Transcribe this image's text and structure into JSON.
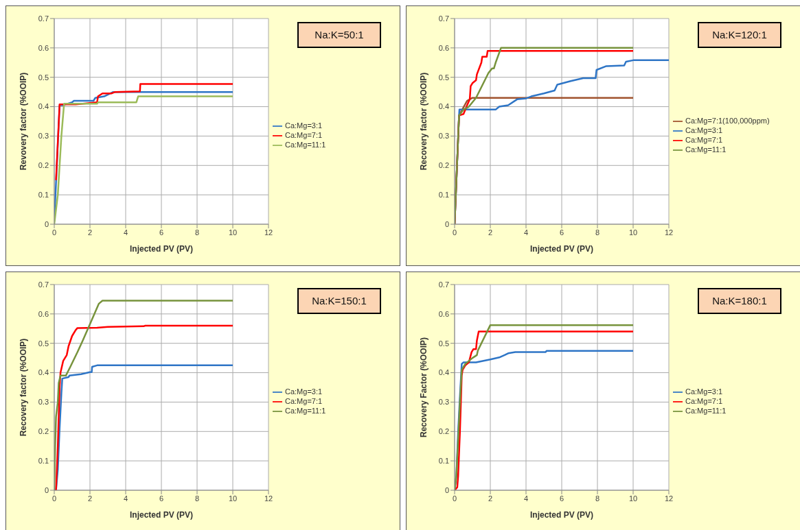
{
  "chart_data": [
    {
      "type": "line",
      "annotations": [
        "Na:K=50:1"
      ],
      "xlabel": "Injected PV (PV)",
      "ylabel": "Revovery factor (%OOIP)",
      "xlim": [
        0,
        12
      ],
      "xticks": [
        0,
        2,
        4,
        6,
        8,
        10,
        12
      ],
      "ylim": [
        0,
        0.7
      ],
      "yticks": [
        0,
        0.1,
        0.2,
        0.3,
        0.4,
        0.5,
        0.6,
        0.7
      ],
      "grid": true,
      "legend": "right",
      "marker": "none",
      "series": [
        {
          "name": "Ca:Mg=3:1",
          "color": "#2e75c6",
          "x": [
            0,
            0.3,
            0.5,
            1,
            1.1,
            2.2,
            2.3,
            2.8,
            3.3,
            10
          ],
          "values": [
            0.01,
            0.405,
            0.405,
            0.415,
            0.42,
            0.42,
            0.43,
            0.435,
            0.45,
            0.45
          ]
        },
        {
          "name": "Ca:Mg=7:1",
          "color": "#ff0000",
          "x": [
            0.1,
            0.3,
            1.2,
            2.4,
            2.45,
            2.7,
            3.2,
            3.4,
            4.8,
            4.82,
            10
          ],
          "values": [
            0.15,
            0.408,
            0.408,
            0.415,
            0.435,
            0.445,
            0.445,
            0.45,
            0.452,
            0.477,
            0.477
          ]
        },
        {
          "name": "Ca:Mg=11:1",
          "color": "#9bbb59",
          "x": [
            0,
            0.2,
            0.4,
            0.55,
            2.4,
            2.45,
            4.6,
            4.7,
            10
          ],
          "values": [
            0,
            0.1,
            0.3,
            0.41,
            0.41,
            0.415,
            0.415,
            0.435,
            0.435
          ]
        }
      ]
    },
    {
      "type": "line",
      "annotations": [
        "Na:K=120:1"
      ],
      "xlabel": "Injected PV (PV)",
      "ylabel": "Recovery factor (%OOIP)",
      "xlim": [
        0,
        12
      ],
      "xticks": [
        0,
        2,
        4,
        6,
        8,
        10,
        12
      ],
      "ylim": [
        0,
        0.7
      ],
      "yticks": [
        0,
        0.1,
        0.2,
        0.3,
        0.4,
        0.5,
        0.6,
        0.7
      ],
      "grid": true,
      "legend": "right",
      "marker": "none",
      "series": [
        {
          "name": "Ca:Mg=7:1(100,000ppm)",
          "color": "#a0522d",
          "x": [
            0,
            0.25,
            0.7,
            1,
            10
          ],
          "values": [
            0,
            0.37,
            0.42,
            0.43,
            0.43
          ]
        },
        {
          "name": "Ca:Mg=3:1",
          "color": "#2e75c6",
          "x": [
            0,
            0.25,
            0.27,
            2.3,
            2.5,
            3,
            3.5,
            4,
            4.3,
            5,
            5.6,
            5.75,
            6.5,
            7.2,
            7.9,
            7.95,
            8.5,
            9.5,
            9.6,
            10,
            12
          ],
          "values": [
            0,
            0.37,
            0.39,
            0.39,
            0.4,
            0.405,
            0.425,
            0.428,
            0.435,
            0.445,
            0.455,
            0.475,
            0.487,
            0.497,
            0.497,
            0.525,
            0.538,
            0.54,
            0.553,
            0.558,
            0.558
          ]
        },
        {
          "name": "Ca:Mg=7:1",
          "color": "#ff0000",
          "x": [
            0,
            0.25,
            0.5,
            0.7,
            0.85,
            0.9,
            1,
            1.2,
            1.25,
            1.5,
            1.55,
            1.8,
            1.85,
            10
          ],
          "values": [
            0,
            0.37,
            0.375,
            0.405,
            0.425,
            0.47,
            0.48,
            0.49,
            0.51,
            0.55,
            0.57,
            0.57,
            0.59,
            0.59
          ]
        },
        {
          "name": "Ca:Mg=11:1",
          "color": "#77933c",
          "x": [
            0,
            0.25,
            0.5,
            0.8,
            1.2,
            1.9,
            2.1,
            2.2,
            2.3,
            2.6,
            10
          ],
          "values": [
            0,
            0.37,
            0.39,
            0.4,
            0.43,
            0.515,
            0.53,
            0.53,
            0.55,
            0.6,
            0.6
          ]
        }
      ]
    },
    {
      "type": "line",
      "annotations": [
        "Na:K=150:1"
      ],
      "xlabel": "Injected PV (PV)",
      "ylabel": "Recovery factor (%OOIP)",
      "xlim": [
        0,
        12
      ],
      "xticks": [
        0,
        2,
        4,
        6,
        8,
        10,
        12
      ],
      "ylim": [
        0,
        0.7
      ],
      "yticks": [
        0,
        0.1,
        0.2,
        0.3,
        0.4,
        0.5,
        0.6,
        0.7
      ],
      "grid": true,
      "legend": "right",
      "marker": "none",
      "series": [
        {
          "name": "Ca:Mg=3:1",
          "color": "#2e75c6",
          "x": [
            0,
            0.1,
            0.2,
            0.3,
            0.4,
            0.45,
            0.8,
            0.85,
            1.5,
            2,
            2.1,
            2.12,
            2.4,
            10
          ],
          "values": [
            0,
            0,
            0.07,
            0.21,
            0.33,
            0.38,
            0.385,
            0.39,
            0.395,
            0.402,
            0.402,
            0.42,
            0.425,
            0.425
          ]
        },
        {
          "name": "Ca:Mg=7:1",
          "color": "#ff0000",
          "x": [
            0,
            0.1,
            0.2,
            0.3,
            0.35,
            0.5,
            0.7,
            0.8,
            1,
            1.2,
            1.3,
            2.4,
            3,
            5,
            5.1,
            10
          ],
          "values": [
            0,
            0,
            0.15,
            0.35,
            0.4,
            0.44,
            0.46,
            0.49,
            0.525,
            0.545,
            0.552,
            0.553,
            0.556,
            0.558,
            0.56,
            0.56
          ]
        },
        {
          "name": "Ca:Mg=11:1",
          "color": "#77933c",
          "x": [
            0,
            0.05,
            0.1,
            0.2,
            0.25,
            0.35,
            0.65,
            0.9,
            1.3,
            1.6,
            2,
            2.5,
            2.7,
            10
          ],
          "values": [
            0,
            0.15,
            0.25,
            0.3,
            0.365,
            0.39,
            0.39,
            0.42,
            0.47,
            0.51,
            0.565,
            0.635,
            0.645,
            0.645
          ]
        }
      ]
    },
    {
      "type": "line",
      "annotations": [
        "Na:K=180:1"
      ],
      "xlabel": "Injected PV (PV)",
      "ylabel": "Recovery Factor (%OOIP)",
      "xlim": [
        0,
        12
      ],
      "xticks": [
        0,
        2,
        4,
        6,
        8,
        10,
        12
      ],
      "ylim": [
        0,
        0.7
      ],
      "yticks": [
        0,
        0.1,
        0.2,
        0.3,
        0.4,
        0.5,
        0.6,
        0.7
      ],
      "grid": true,
      "legend": "right",
      "marker": "none",
      "series": [
        {
          "name": "Ca:Mg=3:1",
          "color": "#2e75c6",
          "x": [
            0,
            0.1,
            0.2,
            0.3,
            0.4,
            0.5,
            1.2,
            2,
            2.5,
            2.8,
            3,
            3.4,
            5.1,
            5.15,
            10
          ],
          "values": [
            0,
            0.05,
            0.2,
            0.32,
            0.43,
            0.435,
            0.435,
            0.445,
            0.452,
            0.46,
            0.466,
            0.47,
            0.47,
            0.474,
            0.474
          ]
        },
        {
          "name": "Ca:Mg=7:1",
          "color": "#ff0000",
          "x": [
            0,
            0.15,
            0.2,
            0.3,
            0.4,
            0.45,
            0.6,
            0.8,
            0.95,
            1.05,
            1.2,
            1.25,
            1.3,
            1.35,
            10
          ],
          "values": [
            0,
            0.01,
            0.05,
            0.2,
            0.39,
            0.41,
            0.425,
            0.435,
            0.47,
            0.48,
            0.48,
            0.51,
            0.525,
            0.54,
            0.54
          ]
        },
        {
          "name": "Ca:Mg=11:1",
          "color": "#77933c",
          "x": [
            0,
            0.1,
            0.3,
            0.4,
            0.6,
            1,
            1.25,
            1.3,
            2,
            10
          ],
          "values": [
            0,
            0.05,
            0.3,
            0.41,
            0.43,
            0.45,
            0.46,
            0.475,
            0.562,
            0.562
          ]
        }
      ]
    }
  ]
}
